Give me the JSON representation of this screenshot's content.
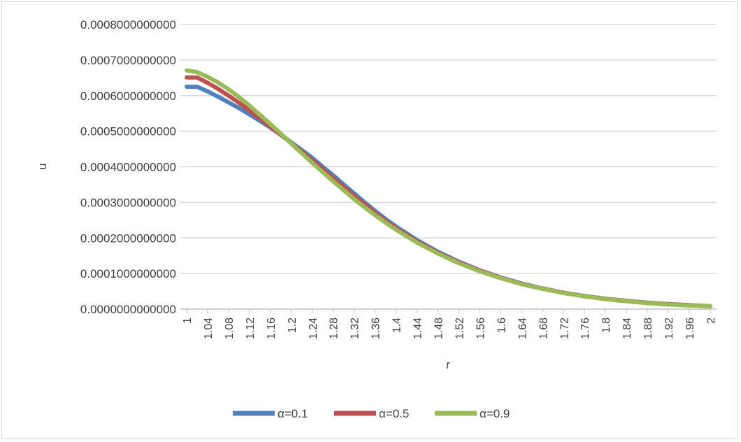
{
  "chart_data": {
    "type": "line",
    "title": "",
    "xlabel": "r",
    "ylabel": "u",
    "ylim": [
      0,
      0.0008
    ],
    "xlim": [
      1,
      2
    ],
    "grid": true,
    "legend_position": "bottom",
    "y_ticks": [
      0,
      0.0001,
      0.0002,
      0.0003,
      0.0004,
      0.0005,
      0.0006,
      0.0007,
      0.0008
    ],
    "y_tick_labels": [
      "0.0000000000000",
      "0.0001000000000",
      "0.0002000000000",
      "0.0003000000000",
      "0.0004000000000",
      "0.0005000000000",
      "0.0006000000000",
      "0.0007000000000",
      "0.0008000000000"
    ],
    "x_tick_labels": [
      "1",
      "1.04",
      "1.08",
      "1.12",
      "1.16",
      "1.2",
      "1.24",
      "1.28",
      "1.32",
      "1.36",
      "1.4",
      "1.44",
      "1.48",
      "1.52",
      "1.56",
      "1.6",
      "1.64",
      "1.68",
      "1.72",
      "1.76",
      "1.8",
      "1.84",
      "1.88",
      "1.92",
      "1.96",
      "2"
    ],
    "x_tick_values": [
      1,
      1.04,
      1.08,
      1.12,
      1.16,
      1.2,
      1.24,
      1.28,
      1.32,
      1.36,
      1.4,
      1.44,
      1.48,
      1.52,
      1.56,
      1.6,
      1.64,
      1.68,
      1.72,
      1.76,
      1.8,
      1.84,
      1.88,
      1.92,
      1.96,
      2
    ],
    "series": [
      {
        "name": "α=0.1",
        "color": "#4f81bd",
        "x": [
          1,
          1.02,
          1.04,
          1.06,
          1.08,
          1.1,
          1.12,
          1.14,
          1.16,
          1.18,
          1.2,
          1.22,
          1.24,
          1.26,
          1.28,
          1.3,
          1.32,
          1.34,
          1.36,
          1.38,
          1.4,
          1.44,
          1.48,
          1.52,
          1.56,
          1.6,
          1.64,
          1.68,
          1.72,
          1.76,
          1.8,
          1.84,
          1.88,
          1.92,
          1.96,
          2
        ],
        "values": [
          0.000625,
          0.000625,
          0.000612,
          0.000597,
          0.000581,
          0.000565,
          0.000547,
          0.000529,
          0.00051,
          0.00049,
          0.000468,
          0.000447,
          0.000425,
          0.0004,
          0.000376,
          0.00035,
          0.000325,
          0.0003,
          0.000276,
          0.000253,
          0.000232,
          0.000194,
          0.000161,
          0.000133,
          0.000109,
          8.9e-05,
          7.2e-05,
          5.8e-05,
          4.6e-05,
          3.7e-05,
          2.9e-05,
          2.3e-05,
          1.8e-05,
          1.4e-05,
          1.1e-05,
          8e-06
        ]
      },
      {
        "name": "α=0.5",
        "color": "#c0504d",
        "x": [
          1,
          1.02,
          1.04,
          1.06,
          1.08,
          1.1,
          1.12,
          1.14,
          1.16,
          1.18,
          1.2,
          1.22,
          1.24,
          1.26,
          1.28,
          1.3,
          1.32,
          1.34,
          1.36,
          1.38,
          1.4,
          1.44,
          1.48,
          1.52,
          1.56,
          1.6,
          1.64,
          1.68,
          1.72,
          1.76,
          1.8,
          1.84,
          1.88,
          1.92,
          1.96,
          2
        ],
        "values": [
          0.000651,
          0.000651,
          0.000636,
          0.000619,
          0.0006,
          0.00058,
          0.000558,
          0.000536,
          0.000512,
          0.00049,
          0.000466,
          0.000442,
          0.000418,
          0.000393,
          0.000368,
          0.000343,
          0.000318,
          0.000294,
          0.00027,
          0.000248,
          0.000227,
          0.00019,
          0.000158,
          0.000131,
          0.000108,
          8.8e-05,
          7.1e-05,
          5.7e-05,
          4.6e-05,
          3.6e-05,
          2.9e-05,
          2.3e-05,
          1.8e-05,
          1.4e-05,
          1.1e-05,
          8e-06
        ]
      },
      {
        "name": "α=0.9",
        "color": "#9bbb59",
        "x": [
          1,
          1.02,
          1.04,
          1.06,
          1.08,
          1.1,
          1.12,
          1.14,
          1.16,
          1.18,
          1.2,
          1.22,
          1.24,
          1.26,
          1.28,
          1.3,
          1.32,
          1.34,
          1.36,
          1.38,
          1.4,
          1.44,
          1.48,
          1.52,
          1.56,
          1.6,
          1.64,
          1.68,
          1.72,
          1.76,
          1.8,
          1.84,
          1.88,
          1.92,
          1.96,
          2
        ],
        "values": [
          0.000671,
          0.000666,
          0.000653,
          0.000637,
          0.000618,
          0.000596,
          0.000572,
          0.000546,
          0.00052,
          0.000493,
          0.000465,
          0.000438,
          0.000411,
          0.000385,
          0.000359,
          0.000334,
          0.000309,
          0.000286,
          0.000264,
          0.000243,
          0.000223,
          0.000187,
          0.000156,
          0.000129,
          0.000106,
          8.7e-05,
          7e-05,
          5.7e-05,
          4.5e-05,
          3.6e-05,
          2.8e-05,
          2.2e-05,
          1.7e-05,
          1.3e-05,
          1e-05,
          8e-06
        ]
      }
    ]
  }
}
